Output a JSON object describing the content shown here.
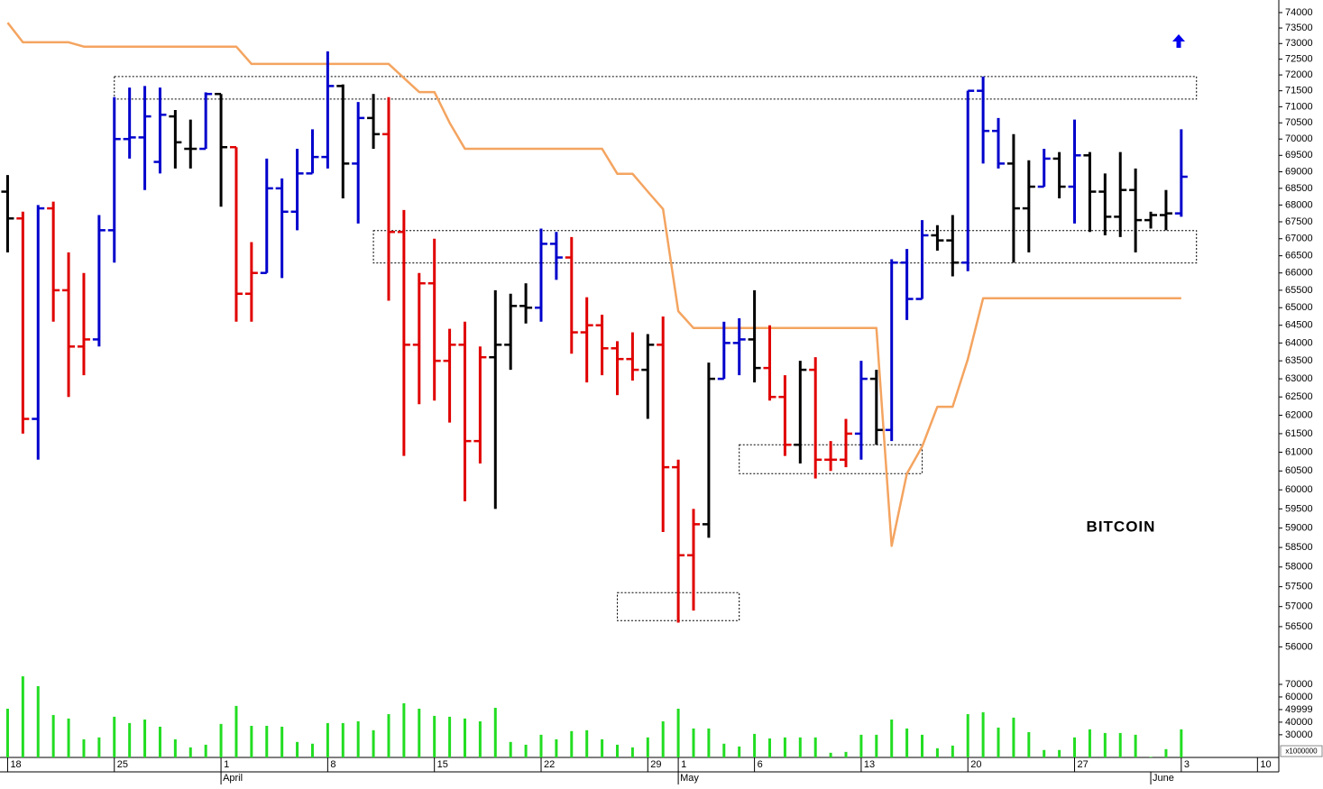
{
  "chart_data": {
    "type": "ohlc",
    "title": "BITCOIN",
    "log": true,
    "ylim": [
      55500,
      74410
    ],
    "yticks": [
      56000,
      56500,
      57000,
      57500,
      58000,
      58500,
      59000,
      59500,
      60000,
      60500,
      61000,
      61500,
      62000,
      62500,
      63000,
      63500,
      64000,
      64500,
      65000,
      65500,
      66000,
      66500,
      67000,
      67500,
      68000,
      68500,
      69000,
      69500,
      70000,
      70500,
      71000,
      71500,
      72000,
      72500,
      73000,
      73500,
      74000
    ],
    "xlim": [
      -0.5,
      83.4
    ],
    "xticks": [
      {
        "value": 0,
        "label": "18"
      },
      {
        "value": 7,
        "label": "25"
      },
      {
        "value": 14,
        "label": "1"
      },
      {
        "value": 21,
        "label": "8"
      },
      {
        "value": 28,
        "label": "15"
      },
      {
        "value": 35,
        "label": "22"
      },
      {
        "value": 42,
        "label": "29"
      },
      {
        "value": 44,
        "label": "1"
      },
      {
        "value": 49,
        "label": "6"
      },
      {
        "value": 56,
        "label": "13"
      },
      {
        "value": 63,
        "label": "20"
      },
      {
        "value": 70,
        "label": "27"
      },
      {
        "value": 77,
        "label": "3"
      },
      {
        "value": 82,
        "label": "10"
      }
    ],
    "month_ticks": [
      {
        "value": 14,
        "label": "April"
      },
      {
        "value": 44,
        "label": "May"
      },
      {
        "value": 75,
        "label": "June"
      }
    ],
    "open": [
      68400,
      67600,
      61900,
      67900,
      65500,
      63900,
      64100,
      67250,
      70000,
      70050,
      69300,
      70700,
      69700,
      69700,
      71400,
      69750,
      65400,
      66000,
      68500,
      67800,
      68950,
      69450,
      71650,
      69250,
      70650,
      70150,
      67200,
      63950,
      65700,
      63500,
      63950,
      61300,
      63600,
      63950,
      65050,
      65000,
      66850,
      66450,
      64300,
      64500,
      63850,
      63550,
      63250,
      63950,
      60600,
      58300,
      59100,
      63000,
      64000,
      64100,
      63300,
      62500,
      61200,
      63250,
      60800,
      60800,
      61500,
      63000,
      61600,
      66300,
      65250,
      67100,
      66950,
      66300,
      71500,
      70250,
      69250,
      67900,
      68550,
      69400,
      68550,
      69500,
      68400,
      67650,
      68450,
      67550,
      67700,
      67750
    ],
    "high": [
      68900,
      67800,
      68000,
      68100,
      66600,
      66000,
      67700,
      71300,
      71600,
      71650,
      71600,
      70900,
      70600,
      71450,
      71400,
      69750,
      66900,
      69400,
      68800,
      69700,
      70300,
      72750,
      71700,
      71150,
      71400,
      71300,
      67850,
      66000,
      67000,
      64400,
      64600,
      63900,
      65500,
      65400,
      65700,
      67300,
      67200,
      67050,
      65300,
      64800,
      64050,
      64300,
      64250,
      64750,
      60800,
      59500,
      63450,
      64600,
      64700,
      65500,
      64500,
      63100,
      63500,
      63600,
      61300,
      61900,
      63500,
      63250,
      66400,
      66700,
      67550,
      67400,
      67700,
      71500,
      71950,
      70650,
      70150,
      69350,
      69700,
      69600,
      70600,
      69600,
      68950,
      69600,
      69100,
      67800,
      68450,
      70300
    ],
    "low": [
      66600,
      61500,
      60800,
      64600,
      62500,
      63100,
      63900,
      66300,
      69400,
      68450,
      68950,
      69100,
      69100,
      69700,
      67950,
      64600,
      64600,
      66000,
      65850,
      67250,
      68950,
      69100,
      68200,
      67450,
      69700,
      65200,
      60900,
      62300,
      62400,
      61800,
      59700,
      60700,
      59500,
      63250,
      64550,
      64600,
      65800,
      63700,
      62900,
      63100,
      62550,
      62950,
      61900,
      58900,
      56600,
      56900,
      58750,
      63000,
      63100,
      62900,
      62400,
      60900,
      60700,
      60300,
      60500,
      60600,
      60800,
      61200,
      61300,
      64650,
      65250,
      66650,
      65900,
      66050,
      69250,
      69100,
      66300,
      66600,
      68550,
      68200,
      67450,
      67200,
      67100,
      67050,
      66600,
      67300,
      67250,
      67650
    ],
    "close": [
      67600,
      61900,
      67900,
      65500,
      63900,
      64100,
      67250,
      70000,
      70050,
      70700,
      70750,
      69900,
      69700,
      71400,
      69750,
      65400,
      66000,
      68500,
      67800,
      68950,
      69450,
      71650,
      69250,
      70650,
      70150,
      67200,
      63950,
      65700,
      63500,
      63950,
      61300,
      63600,
      63950,
      65050,
      65000,
      66850,
      66450,
      64300,
      64500,
      63850,
      63550,
      63250,
      63950,
      60600,
      58300,
      59100,
      63000,
      64000,
      64100,
      63300,
      62500,
      61200,
      63250,
      60800,
      60800,
      61500,
      63000,
      61600,
      66300,
      65250,
      67100,
      66950,
      66300,
      71500,
      70250,
      69250,
      67900,
      68550,
      69400,
      68550,
      69500,
      68400,
      67650,
      68450,
      67550,
      67700,
      67750,
      68850
    ],
    "colors": [
      "#000000",
      "#e00000",
      "#0000cc",
      "#e00000",
      "#e00000",
      "#e00000",
      "#0000cc",
      "#0000cc",
      "#0000cc",
      "#0000cc",
      "#0000cc",
      "#000000",
      "#000000",
      "#0000cc",
      "#000000",
      "#e00000",
      "#e00000",
      "#0000cc",
      "#0000cc",
      "#0000cc",
      "#0000cc",
      "#0000cc",
      "#000000",
      "#0000cc",
      "#000000",
      "#e00000",
      "#e00000",
      "#e00000",
      "#e00000",
      "#e00000",
      "#e00000",
      "#e00000",
      "#000000",
      "#000000",
      "#000000",
      "#0000cc",
      "#0000cc",
      "#e00000",
      "#e00000",
      "#e00000",
      "#e00000",
      "#e00000",
      "#000000",
      "#e00000",
      "#e00000",
      "#e00000",
      "#000000",
      "#0000cc",
      "#0000cc",
      "#000000",
      "#e00000",
      "#e00000",
      "#000000",
      "#e00000",
      "#e00000",
      "#e00000",
      "#0000cc",
      "#000000",
      "#0000cc",
      "#0000cc",
      "#0000cc",
      "#000000",
      "#000000",
      "#0000cc",
      "#0000cc",
      "#0000cc",
      "#000000",
      "#000000",
      "#0000cc",
      "#000000",
      "#0000cc",
      "#000000",
      "#000000",
      "#000000",
      "#000000",
      "#000000",
      "#000000",
      "#0000cc"
    ],
    "stop_line": {
      "color": "#f4a460",
      "values": [
        73670,
        73040,
        73040,
        73040,
        73040,
        72900,
        72900,
        72900,
        72900,
        72900,
        72900,
        72900,
        72900,
        72900,
        72900,
        72900,
        72350,
        72350,
        72350,
        72350,
        72350,
        72350,
        72350,
        72350,
        72350,
        72350,
        71900,
        71460,
        71460,
        70500,
        69700,
        69700,
        69700,
        69700,
        69700,
        69700,
        69700,
        69700,
        69700,
        69700,
        68940,
        68940,
        68400,
        67880,
        64900,
        64420,
        64420,
        64420,
        64420,
        64420,
        64420,
        64420,
        64420,
        64420,
        64420,
        64420,
        64420,
        64420,
        58540,
        60430,
        61150,
        62230,
        62230,
        63550,
        65270,
        65270,
        65270,
        65270,
        65270,
        65270,
        65270,
        65270,
        65270,
        65270,
        65270,
        65270,
        65270,
        65270
      ]
    },
    "zones": [
      {
        "from": 7,
        "to": 78,
        "low": 71240,
        "high": 71950
      },
      {
        "from": 24,
        "to": 78,
        "low": 66290,
        "high": 67240
      },
      {
        "from": 40,
        "to": 48,
        "low": 56650,
        "high": 57350
      },
      {
        "from": 48,
        "to": 60,
        "low": 60430,
        "high": 61200
      }
    ],
    "volume": {
      "color": "#22dd22",
      "unit": "x1000000",
      "ylim": [
        12000,
        80000
      ],
      "yticks": [
        30000,
        40000,
        49999,
        60000,
        70000
      ],
      "values": [
        50700,
        76400,
        68600,
        45700,
        42900,
        26400,
        27900,
        44300,
        39300,
        42100,
        36400,
        26400,
        20000,
        22100,
        38600,
        52900,
        37100,
        37100,
        36400,
        24300,
        22900,
        39300,
        39300,
        40700,
        33600,
        46400,
        55000,
        50700,
        45000,
        44300,
        42900,
        40700,
        51400,
        24300,
        22100,
        30000,
        26400,
        32900,
        33600,
        26400,
        22100,
        20000,
        27900,
        40700,
        50700,
        35000,
        35000,
        22900,
        20700,
        30700,
        27100,
        27900,
        27900,
        27900,
        15700,
        16400,
        30000,
        30000,
        42100,
        35000,
        30000,
        19300,
        21400,
        46400,
        47900,
        35700,
        43600,
        32100,
        17900,
        17900,
        27900,
        34300,
        31400,
        31400,
        30000,
        12500,
        18600,
        34300
      ]
    }
  }
}
